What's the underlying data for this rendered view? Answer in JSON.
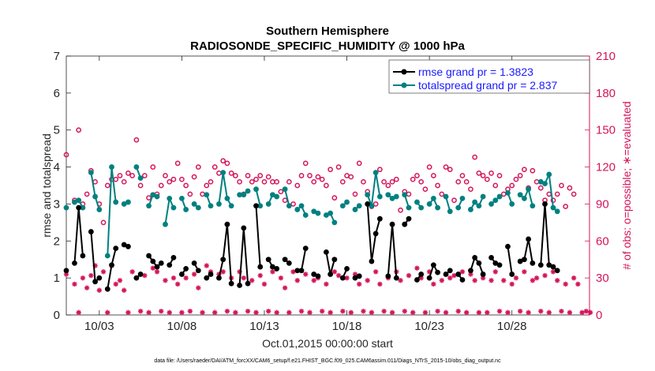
{
  "chart_data": {
    "type": "line",
    "title": "Southern Hemisphere",
    "subtitle": "RADIOSONDE_SPECIFIC_HUMIDITY @ 1000 hPa",
    "xlabel": "Oct.01,2015 00:00:00 start",
    "ylabel_left": "rmse and totalspread",
    "ylabel_right": "# of obs: o=possible; ∗=evaluated",
    "footnote": "data file: /Users/raeder/DAI/ATM_forcXX/CAM6_setup/f.e21.FHIST_BGC.f09_025.CAM6assim.011/Diags_NTrS_2015-10/obs_diag_output.nc",
    "x_range": [
      1,
      32.7
    ],
    "ylim_left": [
      0,
      7
    ],
    "ylim_right": [
      0,
      210
    ],
    "x_ticks": [
      {
        "value": 3,
        "label": "10/03"
      },
      {
        "value": 8,
        "label": "10/08"
      },
      {
        "value": 13,
        "label": "10/13"
      },
      {
        "value": 18,
        "label": "10/18"
      },
      {
        "value": 23,
        "label": "10/23"
      },
      {
        "value": 28,
        "label": "10/28"
      }
    ],
    "y_ticks_left": [
      "0",
      "1",
      "2",
      "3",
      "4",
      "5",
      "6",
      "7"
    ],
    "y_ticks_right": [
      "0",
      "30",
      "60",
      "90",
      "120",
      "150",
      "180",
      "210"
    ],
    "colors": {
      "rmse": "#000000",
      "spread": "#008080",
      "obs": "#d4145a",
      "legend_text": "#1a1aff"
    },
    "legend": [
      {
        "label": "rmse grand pr = 1.3823",
        "series": "rmse"
      },
      {
        "label": "totalspread grand pr = 2.837",
        "series": "spread"
      }
    ],
    "times": [
      1.0,
      1.25,
      1.5,
      1.75,
      2.0,
      2.25,
      2.5,
      2.75,
      3.0,
      3.25,
      3.5,
      3.75,
      4.0,
      4.25,
      4.5,
      4.75,
      5.0,
      5.25,
      5.5,
      5.75,
      6.0,
      6.25,
      6.5,
      6.75,
      7.0,
      7.25,
      7.5,
      7.75,
      8.0,
      8.25,
      8.5,
      8.75,
      9.0,
      9.25,
      9.5,
      9.75,
      10.0,
      10.25,
      10.5,
      10.75,
      11.0,
      11.25,
      11.5,
      11.75,
      12.0,
      12.25,
      12.5,
      12.75,
      13.0,
      13.25,
      13.5,
      13.75,
      14.0,
      14.25,
      14.5,
      14.75,
      15.0,
      15.25,
      15.5,
      15.75,
      16.0,
      16.25,
      16.5,
      16.75,
      17.0,
      17.25,
      17.5,
      17.75,
      18.0,
      18.25,
      18.5,
      18.75,
      19.0,
      19.25,
      19.5,
      19.75,
      20.0,
      20.25,
      20.5,
      20.75,
      21.0,
      21.25,
      21.5,
      21.75,
      22.0,
      22.25,
      22.5,
      22.75,
      23.0,
      23.25,
      23.5,
      23.75,
      24.0,
      24.25,
      24.5,
      24.75,
      25.0,
      25.25,
      25.5,
      25.75,
      26.0,
      26.25,
      26.5,
      26.75,
      27.0,
      27.25,
      27.5,
      27.75,
      28.0,
      28.25,
      28.5,
      28.75,
      29.0,
      29.25,
      29.5,
      29.75,
      30.0,
      30.25,
      30.5,
      30.75,
      31.0,
      31.25,
      31.5,
      31.75,
      32.0,
      32.25,
      32.5,
      32.75
    ],
    "rmse": [
      1.2,
      null,
      1.4,
      2.9,
      1.6,
      null,
      2.25,
      0.9,
      1.0,
      null,
      0.7,
      1.35,
      1.8,
      null,
      1.9,
      1.85,
      null,
      1.0,
      1.1,
      null,
      1.6,
      1.45,
      1.3,
      1.4,
      null,
      1.35,
      1.55,
      null,
      1.1,
      1.25,
      null,
      1.4,
      1.2,
      null,
      1.0,
      1.1,
      null,
      1.0,
      1.5,
      2.45,
      0.85,
      null,
      0.8,
      2.35,
      0.85,
      null,
      2.95,
      1.3,
      null,
      1.5,
      1.3,
      1.25,
      null,
      1.5,
      1.4,
      null,
      1.2,
      1.2,
      1.8,
      null,
      1.1,
      1.05,
      null,
      1.7,
      1.1,
      1.5,
      null,
      1.0,
      1.25,
      null,
      1.0,
      1.05,
      null,
      3.0,
      1.45,
      2.2,
      2.6,
      null,
      1.05,
      2.45,
      1.0,
      null,
      2.45,
      2.6,
      null,
      0.95,
      1.1,
      null,
      1.0,
      1.35,
      1.15,
      null,
      1.1,
      1.2,
      null,
      1.1,
      0.95,
      null,
      1.2,
      1.55,
      1.4,
      1.1,
      null,
      1.55,
      1.4,
      1.35,
      null,
      1.85,
      1.1,
      null,
      1.45,
      1.5,
      2.05,
      1.4,
      null,
      1.35,
      3.0,
      1.35,
      1.3,
      1.2,
      null,
      null,
      null,
      null,
      null,
      null,
      null,
      null
    ],
    "spread": [
      2.9,
      null,
      3.05,
      3.1,
      2.9,
      null,
      3.85,
      3.2,
      2.85,
      null,
      1.6,
      4.0,
      3.05,
      null,
      3.0,
      3.05,
      null,
      4.0,
      3.7,
      null,
      2.95,
      3.25,
      3.2,
      null,
      2.45,
      3.15,
      2.9,
      null,
      3.15,
      2.85,
      null,
      3.0,
      2.9,
      null,
      3.25,
      2.95,
      null,
      3.0,
      3.85,
      3.15,
      2.95,
      null,
      3.25,
      3.25,
      3.35,
      null,
      3.4,
      2.95,
      null,
      3.0,
      3.25,
      3.2,
      null,
      3.4,
      2.95,
      null,
      2.85,
      2.95,
      2.7,
      null,
      2.8,
      2.75,
      null,
      2.7,
      2.75,
      2.5,
      null,
      2.95,
      3.05,
      null,
      2.85,
      2.95,
      null,
      3.25,
      2.95,
      3.85,
      3.2,
      null,
      3.25,
      3.15,
      3.2,
      null,
      3.25,
      2.9,
      null,
      3.05,
      2.9,
      null,
      3.0,
      3.15,
      2.9,
      null,
      3.2,
      2.8,
      null,
      2.9,
      3.15,
      null,
      2.85,
      3.05,
      2.95,
      3.2,
      null,
      3.0,
      3.1,
      3.2,
      null,
      3.3,
      3.0,
      null,
      3.25,
      3.15,
      3.4,
      2.95,
      null,
      3.6,
      3.55,
      3.8,
      2.9,
      2.8,
      null,
      null,
      null,
      null,
      null,
      null,
      null,
      null
    ],
    "obs_possible": [
      130,
      null,
      93,
      150,
      90,
      98,
      117,
      108,
      90,
      75,
      105,
      110,
      110,
      113,
      108,
      115,
      113,
      142,
      105,
      113,
      95,
      120,
      98,
      105,
      113,
      108,
      110,
      123,
      110,
      105,
      98,
      112,
      120,
      98,
      105,
      108,
      120,
      115,
      125,
      123,
      115,
      113,
      108,
      98,
      113,
      108,
      110,
      113,
      108,
      112,
      108,
      108,
      100,
      93,
      108,
      90,
      105,
      113,
      123,
      113,
      108,
      112,
      110,
      105,
      118,
      95,
      120,
      108,
      113,
      112,
      98,
      123,
      108,
      100,
      88,
      90,
      118,
      108,
      105,
      108,
      110,
      85,
      100,
      98,
      110,
      113,
      108,
      102,
      120,
      113,
      105,
      98,
      120,
      118,
      93,
      108,
      113,
      108,
      102,
      128,
      115,
      113,
      110,
      115,
      105,
      113,
      98,
      102,
      105,
      110,
      113,
      118,
      103,
      117,
      108,
      103,
      93,
      98,
      93,
      98,
      105,
      88,
      103,
      98,
      null,
      null,
      null,
      null
    ],
    "obs_evaluated": [
      33,
      null,
      25,
      2,
      30,
      22,
      32,
      40,
      20,
      35,
      2,
      40,
      25,
      28,
      20,
      2,
      35,
      30,
      3,
      32,
      2,
      38,
      35,
      3,
      28,
      2,
      30,
      25,
      2,
      30,
      3,
      33,
      22,
      2,
      40,
      35,
      2,
      33,
      35,
      3,
      30,
      2,
      35,
      30,
      3,
      28,
      2,
      32,
      25,
      3,
      35,
      2,
      30,
      22,
      2,
      35,
      28,
      3,
      33,
      2,
      28,
      30,
      3,
      25,
      2,
      35,
      32,
      3,
      30,
      2,
      33,
      25,
      3,
      28,
      2,
      35,
      25,
      3,
      30,
      2,
      35,
      28,
      3,
      32,
      2,
      38,
      30,
      2,
      35,
      25,
      3,
      28,
      2,
      30,
      32,
      3,
      35,
      2,
      33,
      28,
      2,
      30,
      2,
      28,
      35,
      3,
      28,
      2,
      25,
      30,
      3,
      35,
      2,
      28,
      30,
      3,
      32,
      2,
      35,
      28,
      3,
      25,
      2,
      30,
      25,
      2,
      3,
      2
    ]
  }
}
